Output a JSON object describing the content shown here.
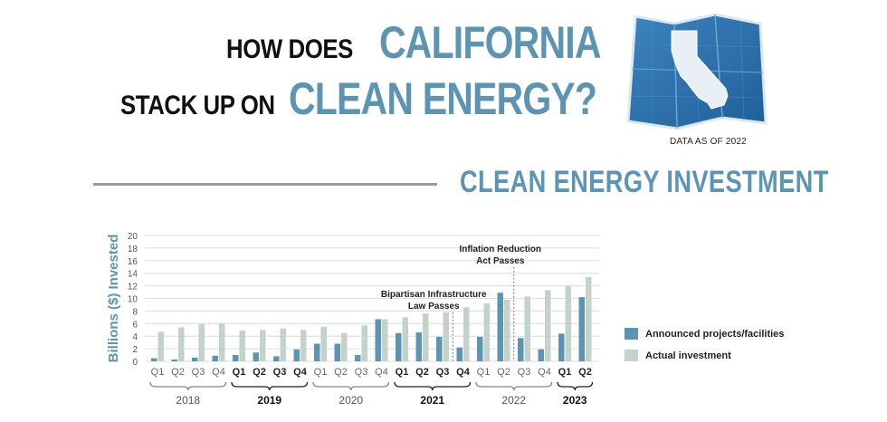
{
  "title": {
    "line1_dark": "HOW DOES",
    "line1_blue": "CALIFORNIA",
    "line2_dark": "STACK UP ON",
    "line2_blue": "CLEAN ENERGY?"
  },
  "data_note": "DATA AS OF 2022",
  "section_title": "CLEAN ENERGY INVESTMENT",
  "map_icon": "california-map-icon",
  "colors": {
    "announced": "#5b95b3",
    "actual": "#c4d3c9",
    "title_blue": "#5b95b3"
  },
  "chart_data": {
    "type": "bar",
    "ylabel": "Billions ($) Invested",
    "ylim": [
      0,
      20
    ],
    "yticks": [
      0,
      2,
      4,
      6,
      8,
      10,
      12,
      14,
      16,
      18,
      20
    ],
    "grid": true,
    "legend_position": "right",
    "categories": [
      "Q1",
      "Q2",
      "Q3",
      "Q4",
      "Q1",
      "Q2",
      "Q3",
      "Q4",
      "Q1",
      "Q2",
      "Q3",
      "Q4",
      "Q1",
      "Q2",
      "Q3",
      "Q4",
      "Q1",
      "Q2",
      "Q3",
      "Q4",
      "Q1",
      "Q2"
    ],
    "years": [
      {
        "label": "2018",
        "start": 0,
        "end": 3,
        "bold": false
      },
      {
        "label": "2019",
        "start": 4,
        "end": 7,
        "bold": true
      },
      {
        "label": "2020",
        "start": 8,
        "end": 11,
        "bold": false
      },
      {
        "label": "2021",
        "start": 12,
        "end": 15,
        "bold": true
      },
      {
        "label": "2022",
        "start": 16,
        "end": 19,
        "bold": false
      },
      {
        "label": "2023",
        "start": 20,
        "end": 21,
        "bold": true
      }
    ],
    "bold_ranges": [
      [
        4,
        7
      ],
      [
        12,
        15
      ],
      [
        20,
        21
      ]
    ],
    "series": [
      {
        "name": "Announced projects/facilities",
        "values": [
          0.5,
          0.3,
          0.6,
          0.9,
          1.0,
          1.4,
          0.8,
          1.9,
          2.8,
          2.8,
          1.0,
          6.7,
          4.5,
          4.6,
          3.9,
          2.2,
          3.9,
          10.9,
          3.7,
          1.9,
          4.4,
          10.2
        ]
      },
      {
        "name": "Actual investment",
        "values": [
          4.7,
          5.4,
          5.9,
          6.0,
          4.9,
          5.0,
          5.2,
          5.0,
          5.5,
          4.5,
          5.7,
          6.7,
          7.0,
          7.6,
          7.8,
          8.6,
          9.2,
          9.8,
          10.3,
          11.3,
          12.0,
          13.4
        ]
      }
    ],
    "annotations": [
      {
        "text_lines": [
          "Bipartisan Infrastructure",
          "Law Passes"
        ],
        "between": [
          14,
          15
        ],
        "y_top": 7.8
      },
      {
        "text_lines": [
          "Inflation Reduction",
          "Act Passes"
        ],
        "between": [
          17,
          18
        ],
        "y_top": 15.0
      }
    ]
  }
}
